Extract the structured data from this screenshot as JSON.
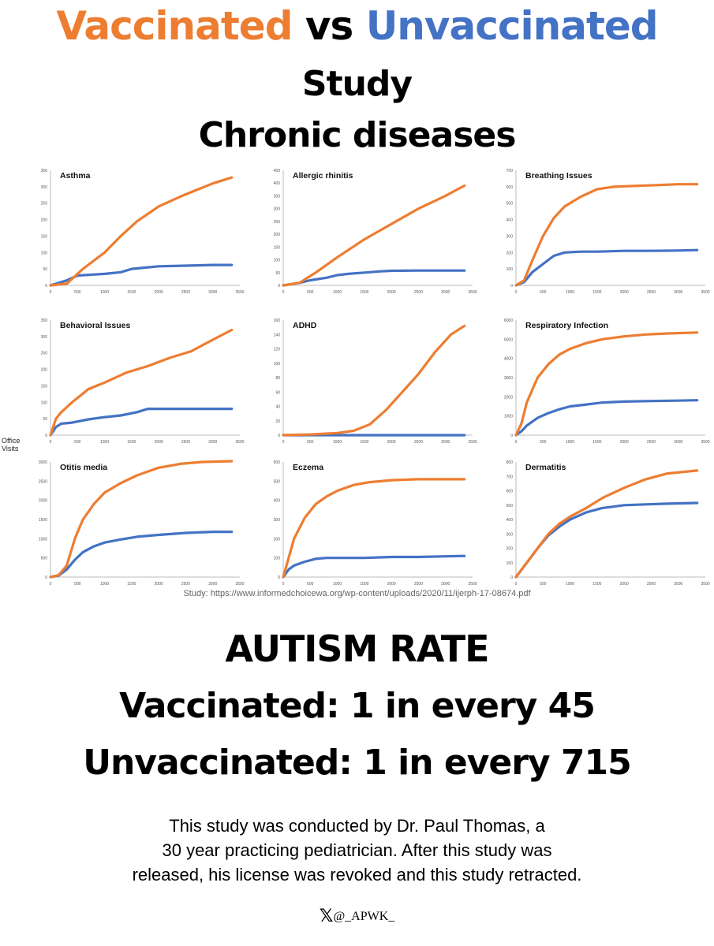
{
  "header": {
    "title_vaccinated": "Vaccinated",
    "title_vs": "vs",
    "title_unvaccinated": "Unvaccinated",
    "line2": "Study",
    "line3": "Chronic diseases"
  },
  "colors": {
    "vaccinated": "#ED7D31",
    "unvaccinated": "#4472C4"
  },
  "y_axis_label": [
    "Office",
    "Visits"
  ],
  "source": "Study: https://www.informedchoicewa.org/wp-content/uploads/2020/11/ijerph-17-08674.pdf",
  "chart_data": [
    {
      "type": "line",
      "title": "Asthma",
      "xlim": [
        0,
        3500
      ],
      "ylim": [
        0,
        350
      ],
      "xticks": [
        "0",
        "500",
        "1000",
        "1500",
        "2000",
        "2500",
        "3000",
        "3500"
      ],
      "yticks": [
        "0",
        "50",
        "100",
        "150",
        "200",
        "250",
        "300",
        "350"
      ],
      "series": [
        {
          "color": "#ED7D31",
          "x": [
            0,
            300,
            600,
            1000,
            1300,
            1600,
            2000,
            2400,
            2700,
            3000,
            3350
          ],
          "y": [
            0,
            5,
            50,
            100,
            150,
            195,
            240,
            270,
            290,
            310,
            328
          ]
        },
        {
          "color": "#4472C4",
          "x": [
            0,
            300,
            500,
            1000,
            1300,
            1500,
            1800,
            2000,
            2500,
            3000,
            3350
          ],
          "y": [
            0,
            15,
            30,
            35,
            40,
            50,
            55,
            58,
            60,
            62,
            62
          ]
        }
      ]
    },
    {
      "type": "line",
      "title": "Allergic rhinitis",
      "xlim": [
        0,
        3500
      ],
      "ylim": [
        0,
        450
      ],
      "xticks": [
        "0",
        "500",
        "1000",
        "1500",
        "2000",
        "2500",
        "3000",
        "3500"
      ],
      "yticks": [
        "0",
        "50",
        "100",
        "150",
        "200",
        "250",
        "300",
        "350",
        "400",
        "450"
      ],
      "series": [
        {
          "color": "#ED7D31",
          "x": [
            0,
            300,
            600,
            1000,
            1500,
            2000,
            2500,
            3000,
            3350
          ],
          "y": [
            0,
            10,
            50,
            110,
            180,
            240,
            300,
            350,
            390
          ]
        },
        {
          "color": "#4472C4",
          "x": [
            0,
            300,
            500,
            800,
            1000,
            1200,
            1500,
            1800,
            2000,
            2500,
            3000,
            3350
          ],
          "y": [
            0,
            10,
            20,
            30,
            40,
            45,
            50,
            55,
            57,
            58,
            58,
            58
          ]
        }
      ]
    },
    {
      "type": "line",
      "title": "Breathing Issues",
      "xlim": [
        0,
        3500
      ],
      "ylim": [
        0,
        700
      ],
      "xticks": [
        "0",
        "500",
        "1000",
        "1500",
        "2000",
        "2500",
        "3000",
        "3500"
      ],
      "yticks": [
        "0",
        "100",
        "200",
        "300",
        "400",
        "500",
        "600",
        "700"
      ],
      "series": [
        {
          "color": "#ED7D31",
          "x": [
            0,
            150,
            300,
            500,
            700,
            900,
            1200,
            1500,
            1800,
            2200,
            2600,
            3000,
            3350
          ],
          "y": [
            0,
            30,
            150,
            300,
            410,
            480,
            540,
            585,
            600,
            605,
            610,
            615,
            615
          ]
        },
        {
          "color": "#4472C4",
          "x": [
            0,
            150,
            300,
            500,
            700,
            900,
            1200,
            1500,
            2000,
            2500,
            3000,
            3350
          ],
          "y": [
            0,
            20,
            80,
            130,
            180,
            200,
            205,
            205,
            210,
            210,
            212,
            215
          ]
        }
      ]
    },
    {
      "type": "line",
      "title": "Behavioral Issues",
      "xlim": [
        0,
        3500
      ],
      "ylim": [
        0,
        350
      ],
      "xticks": [
        "0",
        "500",
        "1000",
        "1500",
        "2000",
        "2500",
        "3000",
        "3500"
      ],
      "yticks": [
        "0",
        "50",
        "100",
        "150",
        "200",
        "250",
        "300",
        "350"
      ],
      "series": [
        {
          "color": "#ED7D31",
          "x": [
            0,
            100,
            200,
            400,
            700,
            1000,
            1400,
            1800,
            2200,
            2600,
            3000,
            3350
          ],
          "y": [
            0,
            50,
            70,
            100,
            140,
            160,
            190,
            210,
            235,
            255,
            290,
            320
          ]
        },
        {
          "color": "#4472C4",
          "x": [
            0,
            100,
            200,
            400,
            700,
            1000,
            1300,
            1600,
            1800,
            2200,
            2600,
            3000,
            3350
          ],
          "y": [
            0,
            25,
            35,
            38,
            48,
            55,
            60,
            70,
            80,
            80,
            80,
            80,
            80
          ]
        }
      ]
    },
    {
      "type": "line",
      "title": "ADHD",
      "xlim": [
        0,
        3500
      ],
      "ylim": [
        0,
        160
      ],
      "xticks": [
        "0",
        "500",
        "1000",
        "1500",
        "2000",
        "2500",
        "3000",
        "3500"
      ],
      "yticks": [
        "0",
        "20",
        "40",
        "60",
        "80",
        "100",
        "120",
        "140",
        "160"
      ],
      "series": [
        {
          "color": "#ED7D31",
          "x": [
            0,
            500,
            1000,
            1300,
            1600,
            1900,
            2200,
            2500,
            2800,
            3100,
            3350
          ],
          "y": [
            0,
            1,
            3,
            6,
            15,
            35,
            60,
            85,
            115,
            140,
            152
          ]
        },
        {
          "color": "#4472C4",
          "x": [
            0,
            1000,
            2000,
            3000,
            3350
          ],
          "y": [
            0,
            0,
            0,
            0,
            0
          ]
        }
      ]
    },
    {
      "type": "line",
      "title": "Respiratory Infection",
      "xlim": [
        0,
        3500
      ],
      "ylim": [
        0,
        6000
      ],
      "xticks": [
        "0",
        "500",
        "1000",
        "1500",
        "2000",
        "2500",
        "3000",
        "3500"
      ],
      "yticks": [
        "0",
        "1000",
        "2000",
        "3000",
        "4000",
        "5000",
        "6000"
      ],
      "series": [
        {
          "color": "#ED7D31",
          "x": [
            0,
            100,
            200,
            400,
            600,
            800,
            1000,
            1300,
            1600,
            2000,
            2400,
            2800,
            3350
          ],
          "y": [
            0,
            600,
            1700,
            3000,
            3700,
            4200,
            4500,
            4800,
            5000,
            5150,
            5250,
            5300,
            5350
          ]
        },
        {
          "color": "#4472C4",
          "x": [
            0,
            100,
            200,
            400,
            600,
            800,
            1000,
            1300,
            1600,
            2000,
            2500,
            3000,
            3350
          ],
          "y": [
            0,
            200,
            500,
            900,
            1150,
            1350,
            1500,
            1600,
            1700,
            1750,
            1780,
            1800,
            1820
          ]
        }
      ]
    },
    {
      "type": "line",
      "title": "Otitis media",
      "xlim": [
        0,
        3500
      ],
      "ylim": [
        0,
        3000
      ],
      "xticks": [
        "0",
        "500",
        "1000",
        "1500",
        "2000",
        "2500",
        "3000",
        "3500"
      ],
      "yticks": [
        "0",
        "500",
        "1000",
        "1500",
        "2000",
        "2500",
        "3000"
      ],
      "series": [
        {
          "color": "#ED7D31",
          "x": [
            0,
            150,
            300,
            450,
            600,
            800,
            1000,
            1300,
            1600,
            2000,
            2400,
            2800,
            3350
          ],
          "y": [
            0,
            50,
            300,
            1000,
            1500,
            1900,
            2200,
            2450,
            2650,
            2850,
            2950,
            3000,
            3020
          ]
        },
        {
          "color": "#4472C4",
          "x": [
            0,
            150,
            300,
            450,
            600,
            800,
            1000,
            1300,
            1600,
            2000,
            2500,
            3000,
            3350
          ],
          "y": [
            0,
            40,
            200,
            450,
            650,
            800,
            900,
            980,
            1050,
            1100,
            1150,
            1180,
            1180
          ]
        }
      ]
    },
    {
      "type": "line",
      "title": "Eczema",
      "xlim": [
        0,
        3500
      ],
      "ylim": [
        0,
        600
      ],
      "xticks": [
        "0",
        "500",
        "1000",
        "1500",
        "2000",
        "2500",
        "3000",
        "3500"
      ],
      "yticks": [
        "0",
        "100",
        "200",
        "300",
        "400",
        "500",
        "600"
      ],
      "series": [
        {
          "color": "#ED7D31",
          "x": [
            0,
            100,
            200,
            400,
            600,
            800,
            1000,
            1300,
            1600,
            2000,
            2500,
            3000,
            3350
          ],
          "y": [
            0,
            100,
            200,
            310,
            380,
            420,
            450,
            480,
            495,
            505,
            510,
            510,
            510
          ]
        },
        {
          "color": "#4472C4",
          "x": [
            0,
            100,
            200,
            400,
            600,
            800,
            1000,
            1500,
            2000,
            2500,
            3000,
            3350
          ],
          "y": [
            0,
            40,
            60,
            80,
            95,
            100,
            100,
            100,
            105,
            105,
            108,
            110
          ]
        }
      ]
    },
    {
      "type": "line",
      "title": "Dermatitis",
      "xlim": [
        0,
        3500
      ],
      "ylim": [
        0,
        800
      ],
      "xticks": [
        "0",
        "500",
        "1000",
        "1500",
        "2000",
        "2500",
        "3000",
        "3500"
      ],
      "yticks": [
        "0",
        "100",
        "200",
        "300",
        "400",
        "500",
        "600",
        "700",
        "800"
      ],
      "series": [
        {
          "color": "#ED7D31",
          "x": [
            0,
            200,
            400,
            600,
            800,
            1000,
            1300,
            1600,
            2000,
            2400,
            2800,
            3350
          ],
          "y": [
            0,
            100,
            200,
            300,
            370,
            420,
            480,
            550,
            620,
            680,
            720,
            740
          ]
        },
        {
          "color": "#4472C4",
          "x": [
            0,
            200,
            400,
            600,
            800,
            1000,
            1300,
            1600,
            2000,
            2400,
            2800,
            3350
          ],
          "y": [
            0,
            100,
            200,
            290,
            350,
            400,
            450,
            480,
            500,
            505,
            510,
            515
          ]
        }
      ]
    }
  ],
  "autism": {
    "heading": "AUTISM RATE",
    "vaccinated": "Vaccinated: 1 in every 45",
    "unvaccinated": "Unvaccinated: 1 in every 715"
  },
  "note": [
    "This study was conducted by Dr. Paul Thomas, a",
    "30 year practicing pediatrician. After this study was",
    "released, his license was revoked and this study retracted."
  ],
  "footer": {
    "logo": "𝕏",
    "handle": "@_APWK_"
  }
}
